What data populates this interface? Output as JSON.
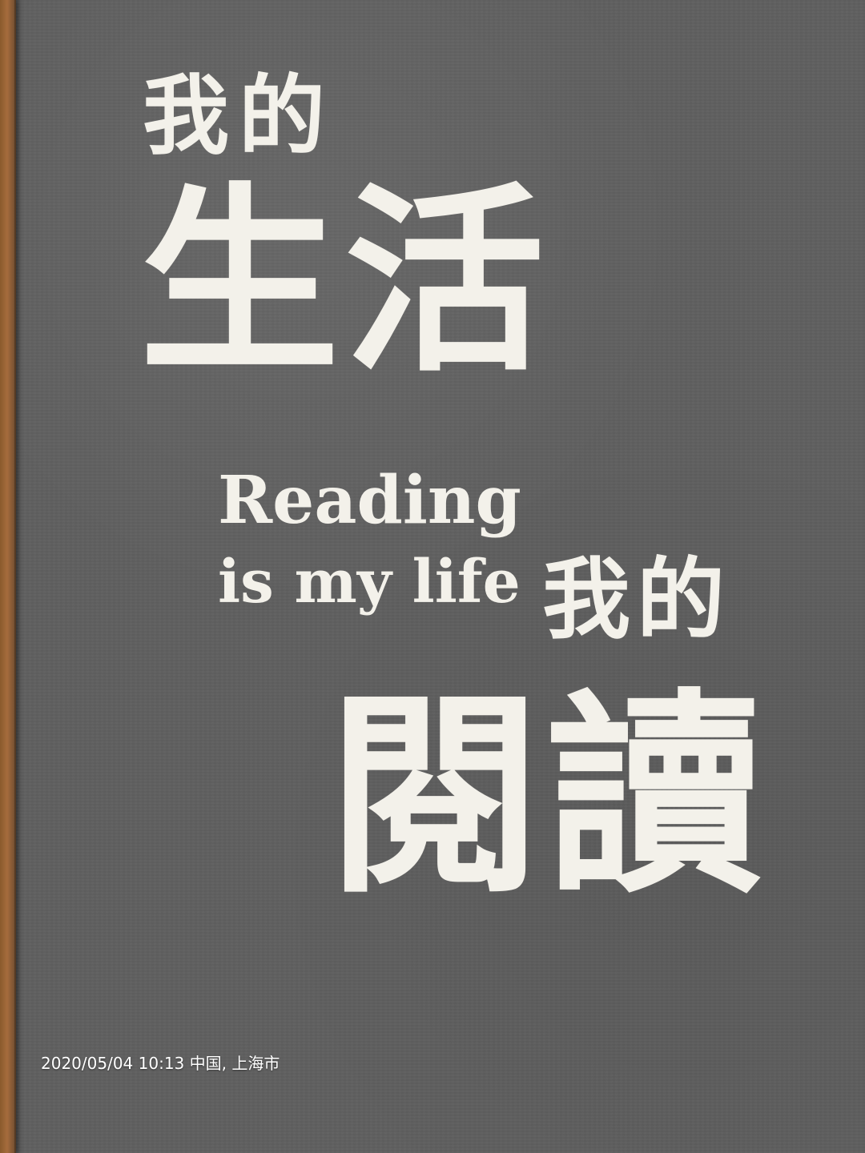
{
  "headline": {
    "line1": "我的",
    "line2": "生活",
    "english_1": "Reading",
    "english_2": "is my life",
    "line3": "我的",
    "line4": "閱讀"
  },
  "photo_stamp": {
    "text": "2020/05/04 10:13  中国, 上海市"
  },
  "colors": {
    "background": "#5f5f5f",
    "text": "#f3f1ea",
    "edge": "#a56c3d"
  }
}
